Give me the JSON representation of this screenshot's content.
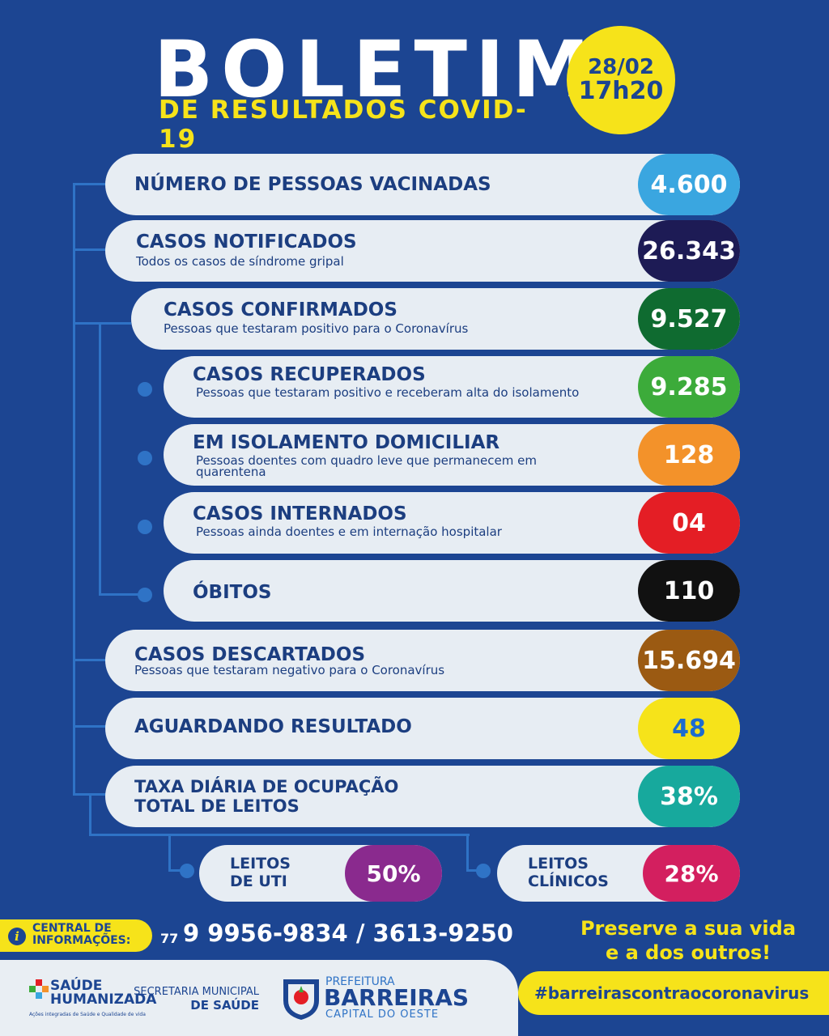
{
  "header": {
    "title": "BOLETIM",
    "subtitle": "DE RESULTADOS COVID-19",
    "date": "28/02",
    "time": "17h20"
  },
  "rows": [
    {
      "label": "NÚMERO DE PESSOAS VACINADAS",
      "desc": "",
      "value": "4.600",
      "color": "#3aa6e0"
    },
    {
      "label": "CASOS NOTIFICADOS",
      "desc": "Todos os casos de síndrome gripal",
      "value": "26.343",
      "color": "#1d1b55"
    },
    {
      "label": "CASOS CONFIRMADOS",
      "desc": "Pessoas que testaram positivo para o Coronavírus",
      "value": "9.527",
      "color": "#0f6b30"
    },
    {
      "label": "CASOS RECUPERADOS",
      "desc": "Pessoas que testaram positivo e receberam alta do isolamento",
      "value": "9.285",
      "color": "#3cab3a"
    },
    {
      "label": "EM ISOLAMENTO DOMICILIAR",
      "desc": "Pessoas doentes com quadro leve que permanecem em quarentena",
      "value": "128",
      "color": "#f3922a"
    },
    {
      "label": "CASOS INTERNADOS",
      "desc": "Pessoas ainda doentes e em internação hospitalar",
      "value": "04",
      "color": "#e41e25"
    },
    {
      "label": "ÓBITOS",
      "desc": "",
      "value": "110",
      "color": "#111111"
    },
    {
      "label": "CASOS DESCARTADOS",
      "desc": "Pessoas que testaram negativo para o Coronavírus",
      "value": "15.694",
      "color": "#9b5a12"
    },
    {
      "label": "AGUARDANDO RESULTADO",
      "desc": "",
      "value": "48",
      "color": "#f6e31a"
    },
    {
      "label1": "TAXA DIÁRIA DE OCUPAÇÃO",
      "label2": "TOTAL DE LEITOS",
      "value": "38%",
      "color": "#17a99d"
    }
  ],
  "beds": [
    {
      "label1": "LEITOS",
      "label2": "DE UTI",
      "value": "50%",
      "color": "#8a2a8e"
    },
    {
      "label1": "LEITOS",
      "label2": "CLÍNICOS",
      "value": "28%",
      "color": "#d31f5f"
    }
  ],
  "info": {
    "label1": "CENTRAL DE",
    "label2": "INFORMAÇÕES:",
    "ddd": "77",
    "phones": "9 9956-9834 / 3613-9250"
  },
  "slogan": {
    "line1": "Preserve a sua vida",
    "line2": "e a dos outros!"
  },
  "footer": {
    "saude1": "SAÚDE",
    "saude2": "HUMANIZADA",
    "saude_tag": "Ações integradas de Saúde e Qualidade de vida",
    "secretaria1": "SECRETARIA MUNICIPAL",
    "secretaria2": "DE SAÚDE",
    "pref1": "PREFEITURA",
    "pref2": "BARREIRAS",
    "pref3": "CAPITAL DO OESTE",
    "hashtag": "#barreirascontraocoronavirus"
  }
}
